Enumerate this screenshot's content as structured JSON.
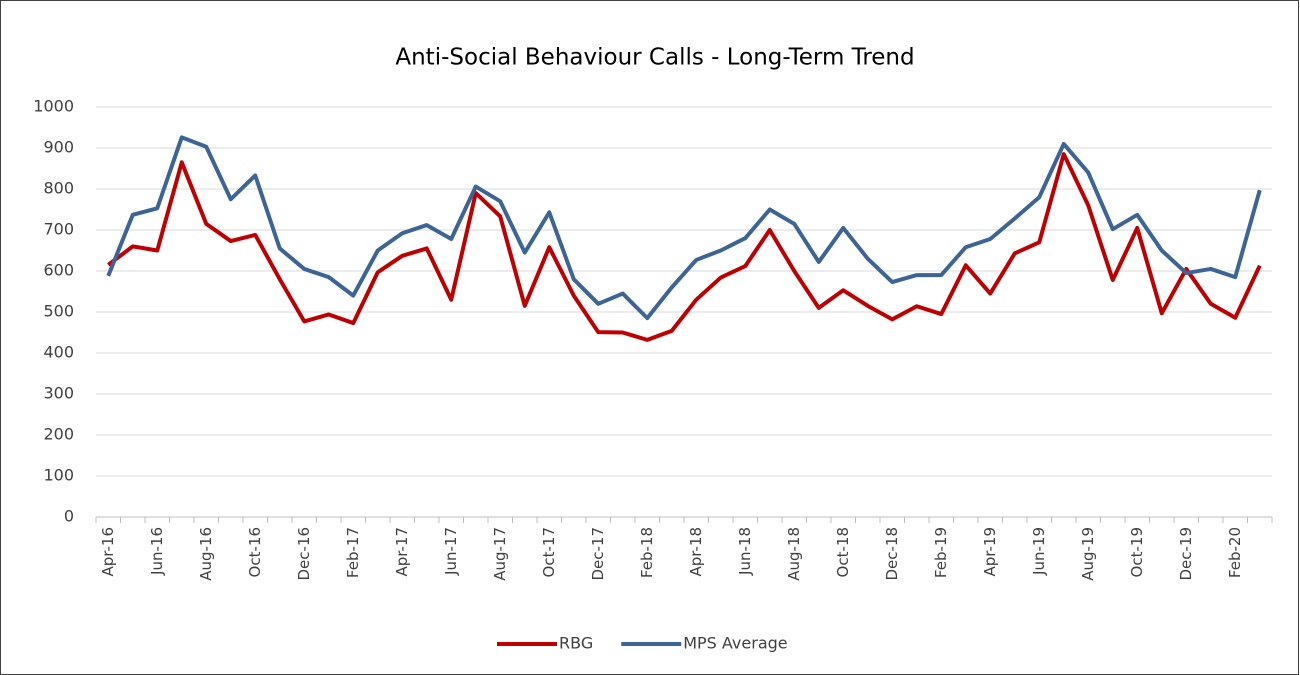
{
  "chart_data": {
    "type": "line",
    "title": "Anti-Social Behaviour Calls - Long-Term Trend",
    "categories": [
      "Apr-16",
      null,
      "Jun-16",
      null,
      "Aug-16",
      null,
      "Oct-16",
      null,
      "Dec-16",
      null,
      "Feb-17",
      null,
      "Apr-17",
      null,
      "Jun-17",
      null,
      "Aug-17",
      null,
      "Oct-17",
      null,
      "Dec-17",
      null,
      "Feb-18",
      null,
      "Apr-18",
      null,
      "Jun-18",
      null,
      "Aug-18",
      null,
      "Oct-18",
      null,
      "Dec-18",
      null,
      "Feb-19",
      null,
      "Apr-19",
      null,
      "Jun-19",
      null,
      "Aug-19",
      null,
      "Oct-19",
      null,
      "Dec-19",
      null,
      "Feb-20",
      null
    ],
    "series": [
      {
        "name": "RBG",
        "color": "#c00000",
        "values": [
          615,
          660,
          650,
          865,
          715,
          673,
          688,
          580,
          477,
          494,
          473,
          597,
          637,
          655,
          530,
          790,
          733,
          515,
          658,
          540,
          451,
          450,
          432,
          454,
          530,
          584,
          612,
          700,
          600,
          510,
          553,
          515,
          482,
          514,
          495,
          614,
          545,
          643,
          670,
          885,
          760,
          578,
          705,
          497,
          605,
          520,
          486,
          613
        ]
      },
      {
        "name": "MPS Average",
        "color": "#3c6496",
        "values": [
          588,
          737,
          753,
          926,
          903,
          775,
          833,
          655,
          605,
          585,
          540,
          650,
          692,
          712,
          678,
          806,
          770,
          645,
          743,
          580,
          520,
          545,
          485,
          560,
          627,
          650,
          680,
          750,
          715,
          622,
          705,
          630,
          573,
          590,
          590,
          658,
          678,
          728,
          780,
          910,
          840,
          702,
          737,
          650,
          595,
          605,
          585,
          797
        ]
      }
    ],
    "ylim": [
      0,
      1000
    ],
    "yticks": [
      0,
      100,
      200,
      300,
      400,
      500,
      600,
      700,
      800,
      900,
      1000
    ],
    "grid": true,
    "legend": "bottom"
  }
}
